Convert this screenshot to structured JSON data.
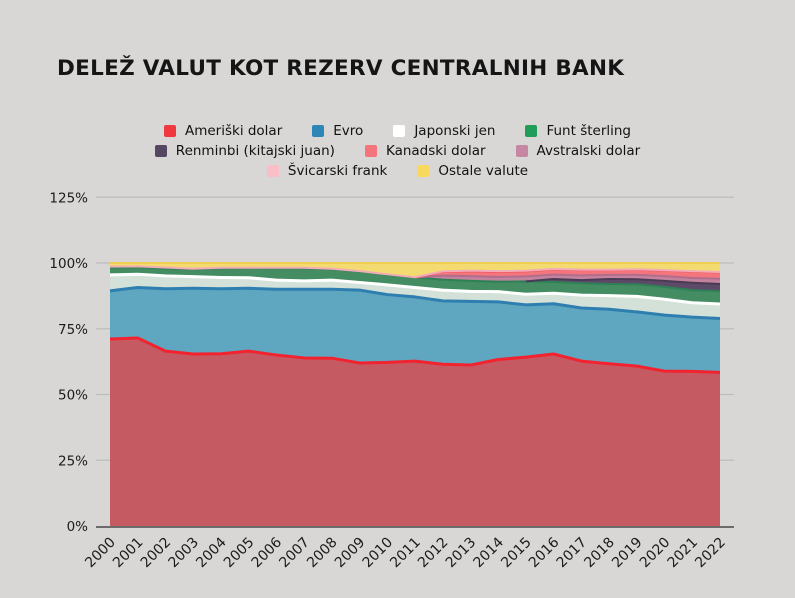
{
  "colors": {
    "background": "#D8D7D5",
    "grid": "#BDBDBD",
    "axis": "#6B6B6B",
    "text": "#1B1B1B"
  },
  "chart_data": {
    "type": "area",
    "stacked": true,
    "title": "DELEŽ VALUT KOT REZERV CENTRALNIH BANK",
    "units": "percent",
    "grid": true,
    "legend_position": "top",
    "ylim": [
      0,
      130
    ],
    "x": [
      2000,
      2001,
      2002,
      2003,
      2004,
      2005,
      2006,
      2007,
      2008,
      2009,
      2010,
      2011,
      2012,
      2013,
      2014,
      2015,
      2016,
      2017,
      2018,
      2019,
      2020,
      2021,
      2022
    ],
    "y_ticks": [
      {
        "value": 0,
        "label": "0%"
      },
      {
        "value": 25,
        "label": "25%"
      },
      {
        "value": 50,
        "label": "50%"
      },
      {
        "value": 75,
        "label": "75%"
      },
      {
        "value": 100,
        "label": "100%"
      },
      {
        "value": 125,
        "label": "125%"
      }
    ],
    "legend_rows": [
      [
        "Ameriški dolar",
        "Evro",
        "Japonski jen",
        "Funt šterling"
      ],
      [
        "Renminbi (kitajski juan)",
        "Kanadski dolar",
        "Avstralski dolar"
      ],
      [
        "Švicarski frank",
        "Ostale valute"
      ]
    ],
    "legend_colors": {
      "Ameriški dolar": "#F0393F",
      "Evro": "#2E86B8",
      "Japonski jen": "#FFFFFF",
      "Funt šterling": "#219C59",
      "Renminbi (kitajski juan)": "#554661",
      "Kanadski dolar": "#F4757B",
      "Avstralski dolar": "#C687A3",
      "Švicarski frank": "#FABEC8",
      "Ostale valute": "#F8D95E"
    },
    "series": [
      {
        "name": "Ameriški dolar",
        "fill": "#C55A63",
        "stroke": "#F2232E",
        "stroke_width": 3,
        "values": [
          71.1,
          71.5,
          66.5,
          65.4,
          65.5,
          66.5,
          65.0,
          63.9,
          63.8,
          62.0,
          62.2,
          62.7,
          61.5,
          61.2,
          63.3,
          64.2,
          65.4,
          62.7,
          61.7,
          60.8,
          58.9,
          58.8,
          58.4
        ]
      },
      {
        "name": "Evro",
        "fill": "#5FA7C1",
        "stroke": "#2E7FB0",
        "stroke_width": 3,
        "values": [
          18.3,
          19.2,
          23.7,
          25.0,
          24.7,
          23.9,
          25.0,
          26.1,
          26.2,
          27.7,
          25.8,
          24.4,
          24.1,
          24.2,
          21.9,
          19.9,
          19.1,
          20.2,
          20.7,
          20.6,
          21.3,
          20.6,
          20.5
        ]
      },
      {
        "name": "Japonski jen",
        "fill": "#D3E1D8",
        "stroke": "#FFFFFF",
        "stroke_width": 3,
        "values": [
          6.1,
          5.0,
          4.9,
          4.4,
          4.3,
          4.0,
          3.5,
          3.2,
          3.5,
          2.9,
          3.7,
          3.6,
          4.1,
          3.8,
          3.9,
          4.0,
          4.0,
          4.9,
          5.2,
          5.9,
          6.0,
          5.5,
          5.5
        ]
      },
      {
        "name": "Funt šterling",
        "fill": "#448C61",
        "stroke": "#2E8156",
        "stroke_width": 2,
        "values": [
          2.8,
          2.7,
          2.8,
          2.8,
          3.5,
          3.7,
          4.5,
          4.8,
          4.2,
          4.2,
          3.9,
          3.8,
          4.0,
          4.0,
          3.8,
          4.9,
          4.3,
          4.5,
          4.4,
          4.6,
          4.7,
          4.8,
          4.9
        ]
      },
      {
        "name": "Renminbi (kitajski juan)",
        "fill": "#5D4A68",
        "stroke": "#4A3A55",
        "stroke_width": 2,
        "values": [
          0,
          0,
          0,
          0,
          0,
          0,
          0,
          0,
          0,
          0,
          0,
          0,
          0,
          0,
          0,
          0,
          1.1,
          1.2,
          1.9,
          1.9,
          2.3,
          2.8,
          2.7
        ]
      },
      {
        "name": "Avstralski dolar",
        "fill": "#C3839D",
        "stroke": "#B26D8D",
        "stroke_width": 2,
        "values": [
          0,
          0,
          0,
          0,
          0,
          0,
          0,
          0,
          0,
          0,
          0,
          0,
          1.5,
          1.8,
          1.8,
          1.9,
          1.7,
          1.8,
          1.6,
          1.7,
          1.8,
          1.8,
          2.0
        ]
      },
      {
        "name": "Kanadski dolar",
        "fill": "#F4757B",
        "stroke": "#F15B63",
        "stroke_width": 2,
        "values": [
          0,
          0,
          0,
          0,
          0,
          0,
          0,
          0,
          0,
          0,
          0,
          0,
          1.4,
          1.8,
          1.9,
          1.9,
          1.9,
          2.0,
          1.8,
          1.9,
          2.1,
          2.4,
          2.4
        ]
      },
      {
        "name": "Švicarski frank",
        "fill": "#F6BDC6",
        "stroke": "#F3ABB7",
        "stroke_width": 2,
        "values": [
          0.3,
          0.3,
          0.4,
          0.2,
          0.2,
          0.1,
          0.2,
          0.2,
          0.1,
          0.1,
          0.1,
          0.1,
          0.2,
          0.3,
          0.3,
          0.3,
          0.2,
          0.2,
          0.2,
          0.2,
          0.2,
          0.2,
          0.2
        ]
      },
      {
        "name": "Ostale valute",
        "fill": "#F3DA71",
        "stroke": "#F0CE53",
        "stroke_width": 2,
        "values": [
          1.4,
          1.3,
          1.7,
          2.2,
          1.8,
          1.8,
          1.8,
          1.8,
          2.2,
          3.1,
          4.3,
          5.4,
          3.2,
          2.9,
          3.1,
          2.9,
          2.3,
          2.5,
          2.5,
          2.4,
          2.7,
          3.1,
          3.4
        ]
      }
    ]
  }
}
